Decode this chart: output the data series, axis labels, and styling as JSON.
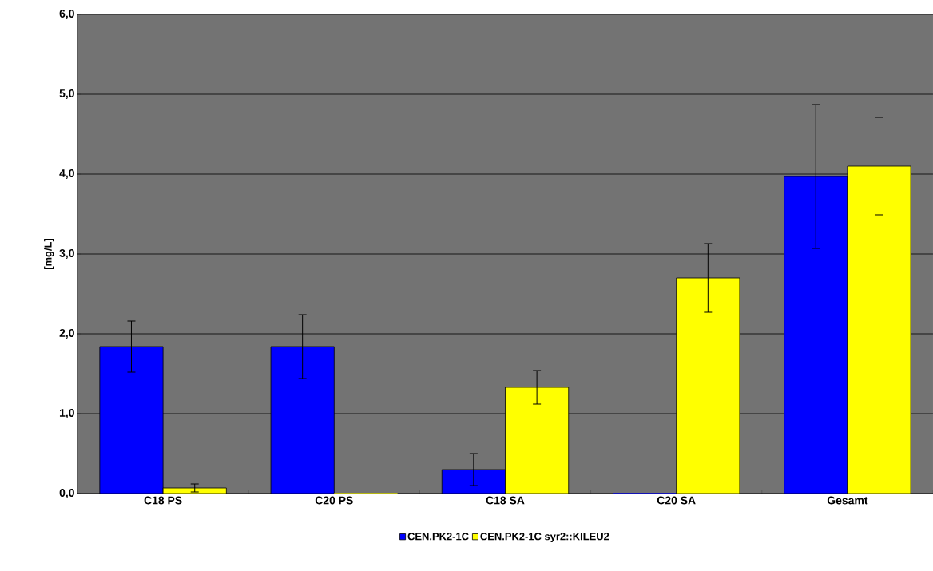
{
  "chart_data": {
    "type": "bar",
    "ylabel": "[mg/L]",
    "categories": [
      "C18 PS",
      "C20 PS",
      "C18 SA",
      "C20 SA",
      "Gesamt"
    ],
    "series": [
      {
        "name": "CEN.PK2-1C",
        "color": "#0000ff",
        "values": [
          1.84,
          1.84,
          0.3,
          0,
          3.97
        ],
        "errors": [
          0.32,
          0.4,
          0.2,
          null,
          0.9
        ]
      },
      {
        "name": "CEN.PK2-1C syr2::KILEU2",
        "color": "#ffff00",
        "values": [
          0.07,
          0,
          1.33,
          2.7,
          4.1
        ],
        "errors": [
          0.05,
          null,
          0.21,
          0.43,
          0.61
        ]
      }
    ],
    "ylim": [
      0,
      6
    ],
    "yticks": [
      {
        "value": 0,
        "label": "0,0"
      },
      {
        "value": 1,
        "label": "1,0"
      },
      {
        "value": 2,
        "label": "2,0"
      },
      {
        "value": 3,
        "label": "3,0"
      },
      {
        "value": 4,
        "label": "4,0"
      },
      {
        "value": 5,
        "label": "5,0"
      },
      {
        "value": 6,
        "label": "6,0"
      }
    ],
    "grid": "y",
    "legend": "bottom"
  }
}
